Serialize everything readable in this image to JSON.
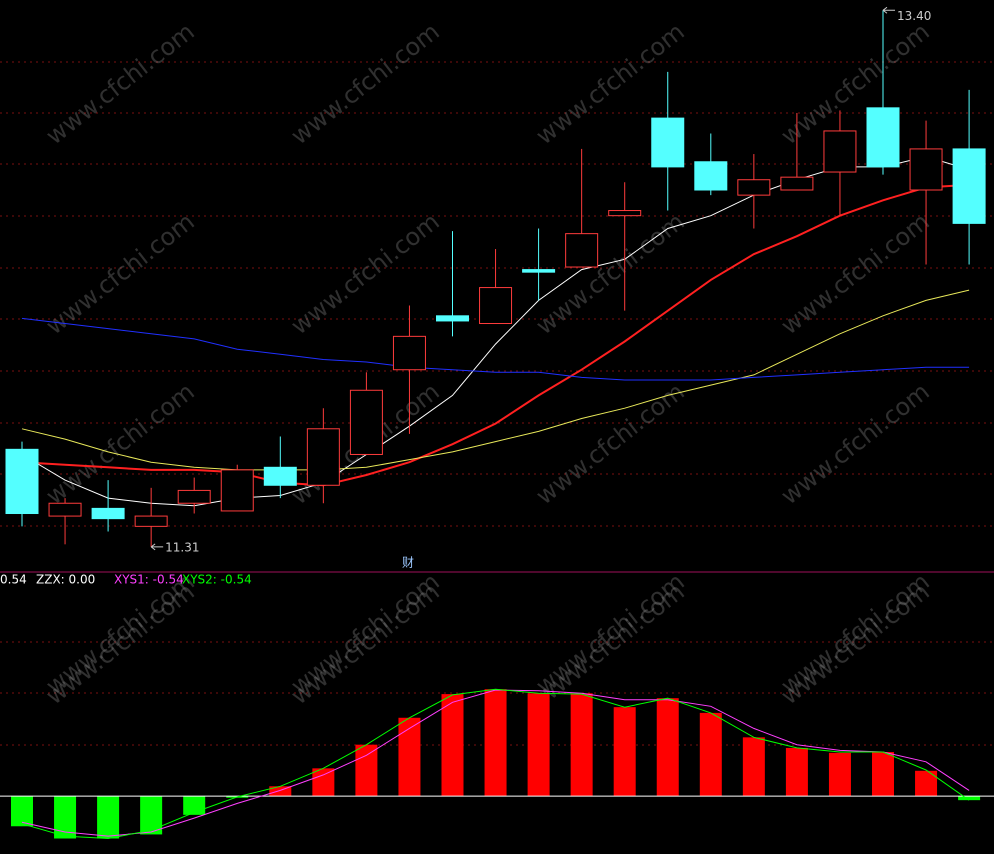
{
  "chart_data": [
    {
      "type": "candlestick",
      "ylim": [
        11.22,
        13.44
      ],
      "open": [
        11.69,
        11.43,
        11.46,
        11.39,
        11.48,
        11.45,
        11.62,
        11.55,
        11.67,
        12.0,
        12.21,
        12.18,
        12.39,
        12.4,
        12.6,
        12.98,
        12.81,
        12.68,
        12.7,
        12.77,
        13.02,
        12.7,
        12.86
      ],
      "close": [
        11.44,
        11.48,
        11.42,
        11.43,
        11.53,
        11.61,
        11.55,
        11.77,
        11.92,
        12.13,
        12.19,
        12.32,
        12.38,
        12.53,
        12.62,
        12.79,
        12.7,
        12.74,
        12.75,
        12.93,
        12.79,
        12.86,
        12.57
      ],
      "high": [
        11.72,
        11.5,
        11.57,
        11.54,
        11.58,
        11.63,
        11.74,
        11.85,
        11.99,
        12.25,
        12.54,
        12.47,
        12.55,
        12.86,
        12.73,
        13.16,
        12.92,
        12.84,
        13.0,
        13.01,
        13.4,
        12.97,
        13.09
      ],
      "low": [
        11.39,
        11.32,
        11.37,
        11.31,
        11.44,
        11.45,
        11.5,
        11.48,
        11.67,
        11.75,
        12.13,
        12.18,
        12.27,
        12.4,
        12.23,
        12.62,
        12.68,
        12.55,
        12.7,
        12.6,
        12.76,
        12.41,
        12.41
      ],
      "up_color": "#ff3c3c",
      "down_color": "#54ffff",
      "series": [
        {
          "color": "#ffffff",
          "width": 1,
          "values": [
            11.67,
            11.57,
            11.5,
            11.48,
            11.47,
            11.5,
            11.51,
            11.56,
            11.67,
            11.78,
            11.9,
            12.1,
            12.27,
            12.39,
            12.43,
            12.55,
            12.6,
            12.68,
            12.74,
            12.79,
            12.79,
            12.83,
            12.78
          ]
        },
        {
          "color": "#ff2020",
          "width": 2,
          "values": [
            11.64,
            11.63,
            11.62,
            11.61,
            11.61,
            11.6,
            11.56,
            11.55,
            11.59,
            11.64,
            11.71,
            11.79,
            11.9,
            12.0,
            12.11,
            12.23,
            12.35,
            12.45,
            12.52,
            12.6,
            12.66,
            12.71,
            12.72
          ]
        },
        {
          "color": "#e8e85a",
          "width": 1,
          "values": [
            11.77,
            11.73,
            11.68,
            11.64,
            11.62,
            11.61,
            11.61,
            11.61,
            11.62,
            11.65,
            11.68,
            11.72,
            11.76,
            11.81,
            11.85,
            11.9,
            11.94,
            11.98,
            12.06,
            12.14,
            12.21,
            12.27,
            12.31
          ]
        },
        {
          "color": "#2030ff",
          "width": 1,
          "values": [
            12.2,
            12.18,
            12.16,
            12.14,
            12.12,
            12.08,
            12.06,
            12.04,
            12.03,
            12.01,
            12.0,
            11.99,
            11.99,
            11.97,
            11.96,
            11.96,
            11.96,
            11.97,
            11.98,
            11.99,
            12.0,
            12.01,
            12.01
          ]
        }
      ],
      "max_label": {
        "value": 13.4,
        "label": "13.40"
      },
      "min_label": 11.31,
      "marker_text": "财",
      "watermark": "www.cfchi.com"
    },
    {
      "type": "bar",
      "ylim": [
        -0.71,
        2.71
      ],
      "values": [
        -0.37,
        -0.52,
        -0.52,
        -0.47,
        -0.23,
        -0.02,
        0.12,
        0.34,
        0.63,
        0.96,
        1.25,
        1.31,
        1.26,
        1.26,
        1.09,
        1.2,
        1.02,
        0.72,
        0.59,
        0.53,
        0.54,
        0.31,
        -0.05
      ],
      "positive_color": "#ff0000",
      "negative_color": "#00ff00",
      "series": [
        {
          "color": "#ff40ff",
          "values": [
            -0.32,
            -0.44,
            -0.49,
            -0.44,
            -0.27,
            -0.09,
            0.07,
            0.26,
            0.5,
            0.83,
            1.15,
            1.3,
            1.29,
            1.26,
            1.18,
            1.18,
            1.1,
            0.83,
            0.63,
            0.56,
            0.54,
            0.42,
            0.07
          ]
        },
        {
          "color": "#00ff00",
          "values": [
            -0.34,
            -0.49,
            -0.52,
            -0.42,
            -0.2,
            -0.01,
            0.12,
            0.34,
            0.63,
            0.96,
            1.24,
            1.31,
            1.26,
            1.25,
            1.09,
            1.2,
            1.02,
            0.72,
            0.59,
            0.54,
            0.54,
            0.32,
            -0.05
          ]
        }
      ],
      "legend": [
        {
          "text": "0.54",
          "color": "#ffffff"
        },
        {
          "text": "ZZX: 0.00",
          "color": "#ffffff"
        },
        {
          "text": "XYS1: -0.54",
          "color": "#ff40ff"
        },
        {
          "text": "XYS2: -0.54",
          "color": "#00ff00"
        }
      ]
    }
  ]
}
